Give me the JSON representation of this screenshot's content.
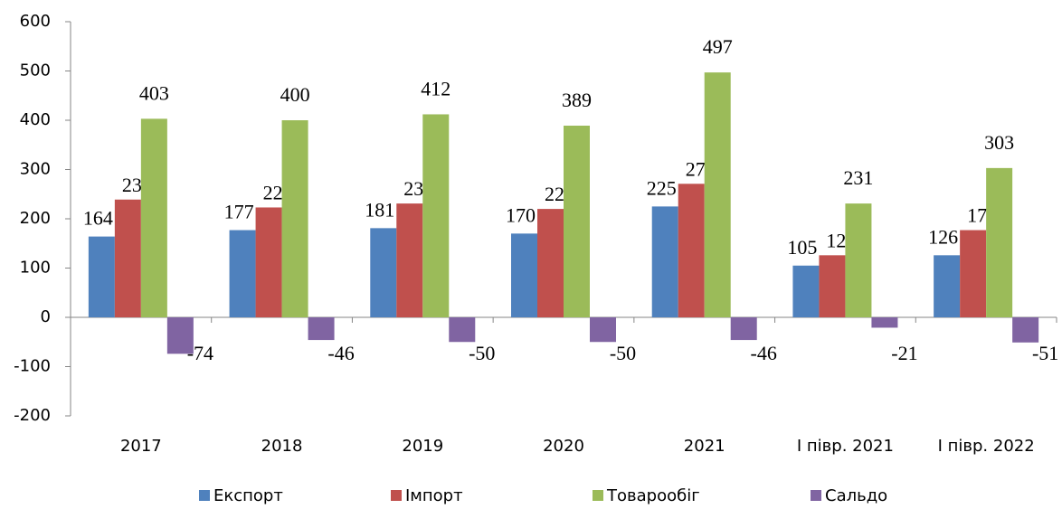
{
  "chart_data": {
    "type": "bar",
    "categories": [
      "2017",
      "2018",
      "2019",
      "2020",
      "2021",
      "І півр. 2021",
      "І півр. 2022"
    ],
    "series": [
      {
        "name": "Експорт",
        "color": "#4f81bd",
        "values": [
          164,
          177,
          181,
          170,
          225,
          105,
          126
        ]
      },
      {
        "name": "Імпорт",
        "color": "#c0504d",
        "values": [
          239,
          223,
          231,
          220,
          271,
          126,
          177
        ]
      },
      {
        "name": "Товарообіг",
        "color": "#9bbb59",
        "values": [
          403,
          400,
          412,
          389,
          497,
          231,
          303
        ]
      },
      {
        "name": "Сальдо",
        "color": "#8064a2",
        "values": [
          -74,
          -46,
          -50,
          -50,
          -46,
          -21,
          -51
        ]
      }
    ],
    "ylim": [
      -200,
      600
    ],
    "yticks": [
      -200,
      -100,
      0,
      100,
      200,
      300,
      400,
      500,
      600
    ],
    "grid": false,
    "legend": "bottom"
  }
}
